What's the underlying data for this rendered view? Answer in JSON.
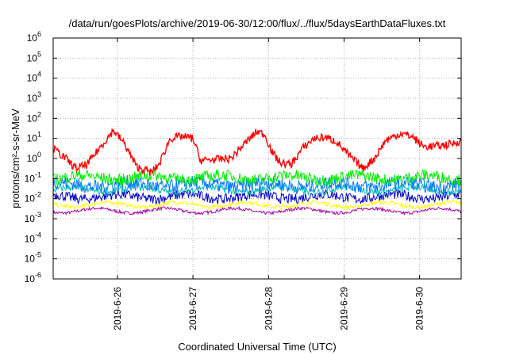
{
  "chart_data": {
    "type": "line",
    "title": "/data/run/goesPlots/archive/2019-06-30/12:00/flux/../flux/5daysEarthDataFluxes.txt",
    "xlabel": "Coordinated Universal Time (UTC)",
    "ylabel": "protons/cm²-s-sr-MeV",
    "yscale": "log",
    "ylim_exponents": [
      -6,
      6
    ],
    "y_tick_base": "10",
    "y_tick_exponents": [
      "-6",
      "-5",
      "-4",
      "-3",
      "-2",
      "-1",
      "0",
      "1",
      "2",
      "3",
      "4",
      "5",
      "6"
    ],
    "xlim_days": [
      25.15,
      30.55
    ],
    "x_ticks": [
      {
        "label": "2019-6-26",
        "day": 26
      },
      {
        "label": "2019-6-27",
        "day": 27
      },
      {
        "label": "2019-6-28",
        "day": 28
      },
      {
        "label": "2019-6-29",
        "day": 29
      },
      {
        "label": "2019-6-30",
        "day": 30
      }
    ],
    "grid": true,
    "series": [
      {
        "color": "#ff0000",
        "x": [
          25.15,
          25.3,
          25.45,
          25.6,
          25.8,
          25.95,
          26.1,
          26.25,
          26.45,
          26.55,
          26.7,
          26.85,
          27.0,
          27.1,
          27.3,
          27.5,
          27.7,
          27.85,
          27.95,
          28.05,
          28.15,
          28.3,
          28.45,
          28.6,
          28.75,
          28.9,
          29.05,
          29.25,
          29.4,
          29.55,
          29.75,
          29.9,
          30.05,
          30.15,
          30.3,
          30.45,
          30.55
        ],
        "log_values": [
          0.5,
          0.05,
          -0.5,
          -0.3,
          0.7,
          1.4,
          0.7,
          -0.4,
          -0.7,
          -0.3,
          1.0,
          1.1,
          1.0,
          -0.1,
          -0.05,
          0.0,
          0.8,
          1.35,
          1.2,
          0.3,
          -0.2,
          -0.3,
          0.5,
          1.0,
          1.05,
          0.85,
          0.2,
          -0.5,
          0.0,
          0.9,
          1.25,
          1.1,
          0.6,
          0.6,
          0.65,
          0.75,
          0.9
        ],
        "noise": 0.2
      },
      {
        "color": "#00ee00",
        "base": -0.95,
        "noise": 0.3
      },
      {
        "color": "#00bbbb",
        "base": -1.55,
        "noise": 0.18
      },
      {
        "color": "#0077ff",
        "base": -1.3,
        "noise": 0.35
      },
      {
        "color": "#0000cc",
        "base": -1.9,
        "noise": 0.25
      },
      {
        "color": "#ffff00",
        "base": -2.3,
        "noise": 0.1
      },
      {
        "color": "#aa00aa",
        "base": -2.6,
        "noise": 0.08
      }
    ]
  }
}
